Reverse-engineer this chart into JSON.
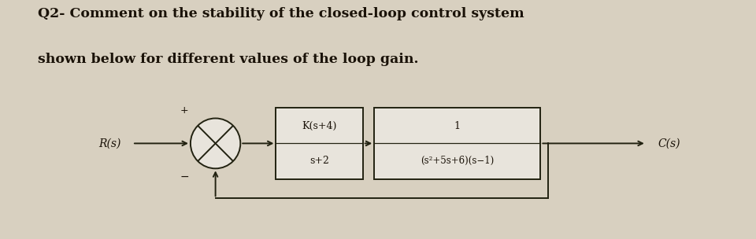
{
  "background_color": "#d8d0c0",
  "diagram_bg": "#ddd8cc",
  "text_color": "#1a1208",
  "title_line1": "Q2- Comment on the stability of the closed-loop control system",
  "title_line2": "shown below for different values of the loop gain.",
  "title_fontsize": 12.5,
  "block1_top": "K(s+4)",
  "block1_bot": "s+2",
  "block2_top": "1",
  "block2_bot": "(s²+5s+6)(s−1)",
  "label_R": "R(s)",
  "label_C": "C(s)",
  "box_color": "#e8e4dc",
  "box_edge_color": "#222211",
  "line_color": "#222211",
  "plus_sign": "+",
  "minus_sign": "−"
}
